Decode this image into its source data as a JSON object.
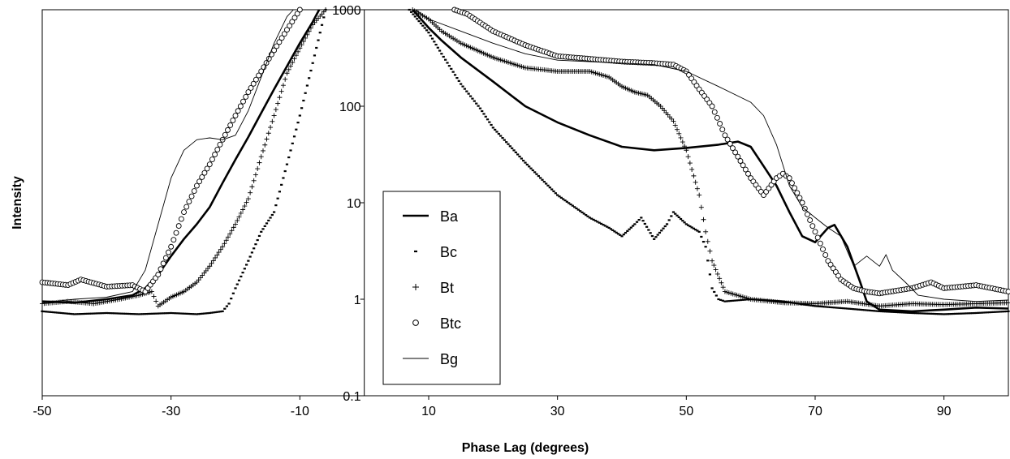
{
  "chart_data": {
    "type": "line",
    "xlabel": "Phase Lag (degrees)",
    "ylabel": "Intensity",
    "x_scale": "linear",
    "y_scale": "log",
    "xlim": [
      -50,
      100
    ],
    "ylim": [
      0.1,
      1000
    ],
    "x_ticks": [
      -50,
      -30,
      -10,
      10,
      30,
      50,
      70,
      90
    ],
    "x_tick_labels": [
      "-50",
      "-30",
      "-10",
      "10",
      "30",
      "50",
      "70",
      "90"
    ],
    "y_ticks": [
      0.1,
      1,
      10,
      100,
      1000
    ],
    "y_tick_labels": [
      "0.1",
      "1",
      "10",
      "100",
      "1000"
    ],
    "y_axis_at_x": 0,
    "grid": false,
    "legend_position": "inside-bottom-center",
    "series": [
      {
        "name": "Ba",
        "style": "thick-line",
        "segments": [
          [
            [
              -50,
              0.95
            ],
            [
              -45,
              0.92
            ],
            [
              -40,
              1.0
            ],
            [
              -36,
              1.1
            ],
            [
              -34,
              1.3
            ],
            [
              -32,
              1.8
            ],
            [
              -30,
              2.8
            ],
            [
              -28,
              4.2
            ],
            [
              -26,
              6.0
            ],
            [
              -24,
              9.0
            ],
            [
              -22,
              16
            ],
            [
              -20,
              28
            ],
            [
              -18,
              48
            ],
            [
              -16,
              85
            ],
            [
              -14,
              150
            ],
            [
              -12,
              260
            ],
            [
              -10,
              450
            ],
            [
              -8,
              750
            ],
            [
              -7,
              1000
            ]
          ],
          [
            [
              7.5,
              1000
            ],
            [
              10,
              650
            ],
            [
              12,
              480
            ],
            [
              15,
              320
            ],
            [
              20,
              180
            ],
            [
              25,
              100
            ],
            [
              30,
              68
            ],
            [
              35,
              50
            ],
            [
              40,
              38
            ],
            [
              45,
              35
            ],
            [
              50,
              37
            ],
            [
              55,
              40
            ],
            [
              58,
              43
            ],
            [
              60,
              38
            ],
            [
              62,
              24
            ],
            [
              64,
              15
            ],
            [
              66,
              8
            ],
            [
              68,
              4.5
            ],
            [
              70,
              3.9
            ],
            [
              72,
              5.5
            ],
            [
              73,
              5.9
            ],
            [
              75,
              3.5
            ],
            [
              77,
              1.5
            ],
            [
              78,
              0.95
            ],
            [
              80,
              0.78
            ],
            [
              85,
              0.75
            ],
            [
              90,
              0.78
            ],
            [
              95,
              0.82
            ],
            [
              100,
              0.8
            ]
          ]
        ]
      },
      {
        "name": "Bc",
        "style": "dashes",
        "segments": [
          [
            [
              -50,
              0.75
            ],
            [
              -45,
              0.7
            ],
            [
              -40,
              0.72
            ],
            [
              -35,
              0.7
            ],
            [
              -30,
              0.72
            ],
            [
              -26,
              0.7
            ],
            [
              -24,
              0.72
            ],
            [
              -22,
              0.75
            ],
            [
              -21,
              0.9
            ],
            [
              -20,
              1.3
            ],
            [
              -18,
              2.5
            ],
            [
              -16,
              5.0
            ],
            [
              -14,
              8.0
            ],
            [
              -12,
              25
            ],
            [
              -10,
              80
            ],
            [
              -8,
              280
            ],
            [
              -6,
              1000
            ]
          ],
          [
            [
              7,
              1000
            ],
            [
              10,
              580
            ],
            [
              12,
              350
            ],
            [
              15,
              170
            ],
            [
              18,
              95
            ],
            [
              20,
              60
            ],
            [
              25,
              26
            ],
            [
              30,
              12
            ],
            [
              35,
              7
            ],
            [
              38,
              5.5
            ],
            [
              40,
              4.5
            ],
            [
              42,
              6
            ],
            [
              43,
              7
            ],
            [
              45,
              4.2
            ],
            [
              47,
              6
            ],
            [
              48,
              8
            ],
            [
              50,
              6
            ],
            [
              52,
              5
            ],
            [
              53,
              3.5
            ],
            [
              54,
              1.3
            ],
            [
              55,
              1.0
            ],
            [
              56,
              0.95
            ],
            [
              60,
              1.0
            ],
            [
              65,
              0.95
            ],
            [
              70,
              0.85
            ],
            [
              75,
              0.8
            ],
            [
              80,
              0.75
            ],
            [
              85,
              0.72
            ],
            [
              90,
              0.7
            ],
            [
              95,
              0.72
            ],
            [
              100,
              0.75
            ]
          ]
        ]
      },
      {
        "name": "Bt",
        "style": "plus-markers",
        "segments": [
          [
            [
              -50,
              0.9
            ],
            [
              -46,
              0.95
            ],
            [
              -42,
              0.9
            ],
            [
              -38,
              1.0
            ],
            [
              -35,
              1.1
            ],
            [
              -33,
              1.2
            ],
            [
              -32,
              0.85
            ],
            [
              -30,
              1.05
            ],
            [
              -28,
              1.2
            ],
            [
              -26,
              1.5
            ],
            [
              -24,
              2.2
            ],
            [
              -22,
              3.5
            ],
            [
              -20,
              6
            ],
            [
              -18,
              11
            ],
            [
              -16,
              30
            ],
            [
              -14,
              80
            ],
            [
              -12,
              220
            ],
            [
              -10,
              400
            ],
            [
              -8,
              700
            ],
            [
              -6,
              1000
            ]
          ],
          [
            [
              7.5,
              1000
            ],
            [
              10,
              800
            ],
            [
              12,
              600
            ],
            [
              15,
              450
            ],
            [
              20,
              320
            ],
            [
              25,
              250
            ],
            [
              30,
              230
            ],
            [
              35,
              230
            ],
            [
              38,
              200
            ],
            [
              40,
              160
            ],
            [
              42,
              140
            ],
            [
              44,
              130
            ],
            [
              46,
              100
            ],
            [
              48,
              70
            ],
            [
              50,
              35
            ],
            [
              52,
              12
            ],
            [
              53,
              5
            ],
            [
              54,
              2.5
            ],
            [
              56,
              1.2
            ],
            [
              60,
              1.0
            ],
            [
              65,
              0.92
            ],
            [
              70,
              0.9
            ],
            [
              75,
              0.95
            ],
            [
              80,
              0.85
            ],
            [
              85,
              0.9
            ],
            [
              90,
              0.88
            ],
            [
              95,
              0.9
            ],
            [
              100,
              0.92
            ]
          ]
        ]
      },
      {
        "name": "Btc",
        "style": "circle-markers",
        "segments": [
          [
            [
              -50,
              1.5
            ],
            [
              -46,
              1.4
            ],
            [
              -44,
              1.6
            ],
            [
              -40,
              1.35
            ],
            [
              -36,
              1.4
            ],
            [
              -34,
              1.2
            ],
            [
              -32,
              1.8
            ],
            [
              -30,
              3.5
            ],
            [
              -28,
              8
            ],
            [
              -26,
              15
            ],
            [
              -24,
              25
            ],
            [
              -22,
              45
            ],
            [
              -20,
              80
            ],
            [
              -18,
              140
            ],
            [
              -16,
              230
            ],
            [
              -14,
              380
            ],
            [
              -12,
              620
            ],
            [
              -10,
              1000
            ]
          ],
          [
            [
              14,
              1000
            ],
            [
              16,
              900
            ],
            [
              20,
              600
            ],
            [
              25,
              430
            ],
            [
              30,
              330
            ],
            [
              35,
              310
            ],
            [
              40,
              290
            ],
            [
              45,
              280
            ],
            [
              48,
              270
            ],
            [
              50,
              230
            ],
            [
              52,
              150
            ],
            [
              54,
              100
            ],
            [
              56,
              50
            ],
            [
              58,
              30
            ],
            [
              60,
              18
            ],
            [
              62,
              12
            ],
            [
              64,
              18
            ],
            [
              65,
              20
            ],
            [
              66,
              18
            ],
            [
              68,
              10
            ],
            [
              70,
              5
            ],
            [
              72,
              2.5
            ],
            [
              74,
              1.6
            ],
            [
              76,
              1.3
            ],
            [
              78,
              1.2
            ],
            [
              80,
              1.15
            ],
            [
              85,
              1.3
            ],
            [
              88,
              1.5
            ],
            [
              90,
              1.3
            ],
            [
              95,
              1.4
            ],
            [
              100,
              1.2
            ]
          ]
        ]
      },
      {
        "name": "Bg",
        "style": "thin-line",
        "segments": [
          [
            [
              -50,
              0.92
            ],
            [
              -45,
              1.0
            ],
            [
              -40,
              1.05
            ],
            [
              -36,
              1.2
            ],
            [
              -34,
              2
            ],
            [
              -32,
              6
            ],
            [
              -30,
              18
            ],
            [
              -28,
              35
            ],
            [
              -26,
              45
            ],
            [
              -24,
              47
            ],
            [
              -22,
              45
            ],
            [
              -20,
              50
            ],
            [
              -18,
              90
            ],
            [
              -16,
              200
            ],
            [
              -14,
              450
            ],
            [
              -12,
              850
            ],
            [
              -11,
              1000
            ]
          ],
          [
            [
              8,
              1000
            ],
            [
              10,
              800
            ],
            [
              15,
              600
            ],
            [
              20,
              450
            ],
            [
              25,
              350
            ],
            [
              30,
              300
            ],
            [
              35,
              290
            ],
            [
              40,
              280
            ],
            [
              45,
              270
            ],
            [
              50,
              230
            ],
            [
              55,
              160
            ],
            [
              60,
              110
            ],
            [
              62,
              80
            ],
            [
              64,
              40
            ],
            [
              66,
              15
            ],
            [
              68,
              9
            ],
            [
              70,
              7
            ],
            [
              72,
              5.5
            ],
            [
              74,
              4.5
            ],
            [
              76,
              2.2
            ],
            [
              78,
              2.8
            ],
            [
              80,
              2.2
            ],
            [
              81,
              2.9
            ],
            [
              82,
              2.0
            ],
            [
              84,
              1.5
            ],
            [
              86,
              1.1
            ],
            [
              90,
              1.0
            ],
            [
              95,
              0.95
            ],
            [
              100,
              0.98
            ]
          ]
        ]
      }
    ]
  }
}
